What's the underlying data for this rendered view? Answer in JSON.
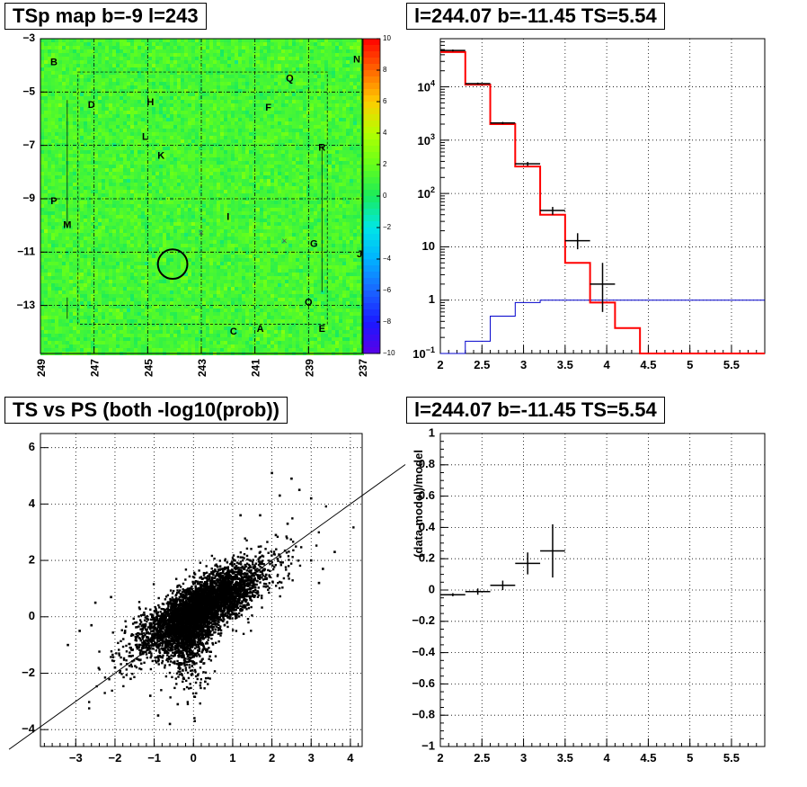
{
  "titles": {
    "tsmap": "TSp map b=-9 l=243",
    "spectrum": "l=244.07 b=-11.45 TS=5.54",
    "scatter": "TS vs PS (both -log10(prob))",
    "residual": "l=244.07 b=-11.45 TS=5.54"
  },
  "chart_data": [
    {
      "type": "heatmap",
      "id": "tsmap",
      "title": "TSp map b=-9 l=243",
      "xlim": [
        249,
        237
      ],
      "ylim": [
        -14.8,
        -3
      ],
      "x_ticks": [
        249,
        247,
        245,
        243,
        241,
        239,
        237
      ],
      "y_ticks": [
        -3,
        -5,
        -7,
        -9,
        -11,
        -13
      ],
      "colorbar": {
        "range": [
          -10,
          10
        ],
        "ticks": [
          10,
          8,
          6,
          4,
          2,
          0,
          -2,
          -4,
          -6,
          -8,
          -10
        ]
      },
      "base_value": 1.2,
      "source_labels": [
        {
          "name": "B",
          "l": 248.5,
          "b": -3.9
        },
        {
          "name": "N",
          "l": 237.2,
          "b": -3.8
        },
        {
          "name": "Q",
          "l": 239.7,
          "b": -4.5
        },
        {
          "name": "D",
          "l": 247.1,
          "b": -5.5
        },
        {
          "name": "H",
          "l": 244.9,
          "b": -5.4
        },
        {
          "name": "F",
          "l": 240.5,
          "b": -5.6
        },
        {
          "name": "L",
          "l": 245.1,
          "b": -6.7
        },
        {
          "name": "R",
          "l": 238.5,
          "b": -7.1
        },
        {
          "name": "K",
          "l": 244.5,
          "b": -7.4
        },
        {
          "name": "P",
          "l": 248.5,
          "b": -9.1
        },
        {
          "name": "I",
          "l": 242.0,
          "b": -9.7
        },
        {
          "name": "M",
          "l": 248.0,
          "b": -10.0
        },
        {
          "name": "G",
          "l": 238.8,
          "b": -10.7
        },
        {
          "name": "J",
          "l": 237.1,
          "b": -11.1
        },
        {
          "name": "O",
          "l": 239.0,
          "b": -12.9
        },
        {
          "name": "C",
          "l": 241.8,
          "b": -14.0
        },
        {
          "name": "A",
          "l": 240.8,
          "b": -13.9
        },
        {
          "name": "E",
          "l": 238.5,
          "b": -13.9
        }
      ],
      "crosses": [
        {
          "l": 243.0,
          "b": -10.3
        },
        {
          "l": 239.9,
          "b": -10.6
        }
      ],
      "circle": {
        "l": 244.07,
        "b": -11.45,
        "r_deg": 0.55
      }
    },
    {
      "type": "line",
      "id": "spectrum",
      "title": "l=244.07 b=-11.45 TS=5.54",
      "xlim": [
        2,
        5.9
      ],
      "ylim": [
        0.1,
        80000
      ],
      "yscale": "log",
      "x_ticks": [
        2,
        2.5,
        3,
        3.5,
        4,
        4.5,
        5,
        5.5
      ],
      "y_tick_labels": [
        "10^-1",
        "1",
        "10",
        "10^2",
        "10^3",
        "10^4"
      ],
      "series": [
        {
          "kind": "red-histogram",
          "edges": [
            2.0,
            2.3,
            2.6,
            2.9,
            3.2,
            3.5,
            3.8,
            4.1,
            4.4,
            4.7,
            5.0,
            5.9
          ],
          "values": [
            45000,
            11000,
            2000,
            320,
            40,
            5,
            0.9,
            0.3,
            0.1,
            0.1,
            0.1
          ]
        },
        {
          "kind": "blue-histogram",
          "edges": [
            2.0,
            2.3,
            2.6,
            2.9,
            3.2,
            3.5,
            3.8,
            4.1,
            4.4,
            4.7,
            5.0,
            5.9
          ],
          "values": [
            0.1,
            0.17,
            0.5,
            0.9,
            1.0,
            1.0,
            1.0,
            1.0,
            1.0,
            1.0,
            1.0
          ]
        },
        {
          "kind": "data-points",
          "x": [
            2.15,
            2.45,
            2.75,
            3.05,
            3.35,
            3.65,
            3.95
          ],
          "y": [
            48000,
            11500,
            2100,
            360,
            48,
            13,
            2
          ],
          "ylow": [
            46000,
            11000,
            2000,
            330,
            40,
            9,
            0.6
          ],
          "yhigh": [
            50000,
            12000,
            2200,
            390,
            56,
            18,
            5
          ]
        }
      ]
    },
    {
      "type": "scatter",
      "id": "scatter",
      "title": "TS vs PS (both -log10(prob))",
      "xlim": [
        -3.9,
        4.3
      ],
      "ylim": [
        -4.6,
        6.5
      ],
      "x_ticks": [
        -3,
        -2,
        -1,
        0,
        1,
        2,
        3,
        4
      ],
      "y_ticks": [
        -4,
        -2,
        0,
        2,
        4,
        6
      ],
      "line": {
        "slope": 1,
        "intercept": 0
      },
      "cloud": {
        "count": 4500,
        "center": [
          0.2,
          0.3
        ],
        "main_sd": 0.95,
        "minor_sd": 0.38,
        "seed": 7
      },
      "outliers": [
        [
          2.0,
          5.1
        ],
        [
          2.5,
          4.9
        ],
        [
          2.7,
          4.5
        ],
        [
          3.0,
          4.2
        ],
        [
          2.2,
          4.3
        ],
        [
          1.7,
          3.6
        ],
        [
          3.6,
          2.3
        ],
        [
          3.3,
          1.7
        ],
        [
          3.2,
          1.2
        ],
        [
          3.0,
          2.0
        ],
        [
          -2.6,
          -0.3
        ],
        [
          -2.9,
          -0.5
        ],
        [
          -3.2,
          -1.0
        ],
        [
          -2.5,
          0.5
        ],
        [
          -2.1,
          0.7
        ],
        [
          -0.9,
          -3.5
        ],
        [
          -0.6,
          -3.8
        ],
        [
          -1.1,
          -2.8
        ],
        [
          -0.4,
          -3.1
        ],
        [
          0.3,
          -2.3
        ],
        [
          -2.0,
          -1.8
        ],
        [
          -1.6,
          -2.2
        ],
        [
          2.4,
          3.3
        ],
        [
          1.2,
          3.6
        ],
        [
          2.1,
          2.9
        ]
      ]
    },
    {
      "type": "line",
      "id": "residual",
      "title": "l=244.07 b=-11.45 TS=5.54",
      "xlim": [
        2,
        5.9
      ],
      "ylim": [
        -1,
        1
      ],
      "ylabel": "(data-model)/model",
      "x_ticks": [
        2,
        2.5,
        3,
        3.5,
        4,
        4.5,
        5,
        5.5
      ],
      "y_ticks": [
        1,
        0.8,
        0.6,
        0.4,
        0.2,
        0,
        -0.2,
        -0.4,
        -0.6,
        -0.8,
        -1
      ],
      "series": [
        {
          "kind": "data-points",
          "x": [
            2.15,
            2.45,
            2.75,
            3.05,
            3.35
          ],
          "xerr": 0.15,
          "y": [
            -0.03,
            -0.01,
            0.03,
            0.17,
            0.25
          ],
          "yerr": [
            0.01,
            0.02,
            0.03,
            0.07,
            0.17
          ]
        }
      ]
    }
  ]
}
